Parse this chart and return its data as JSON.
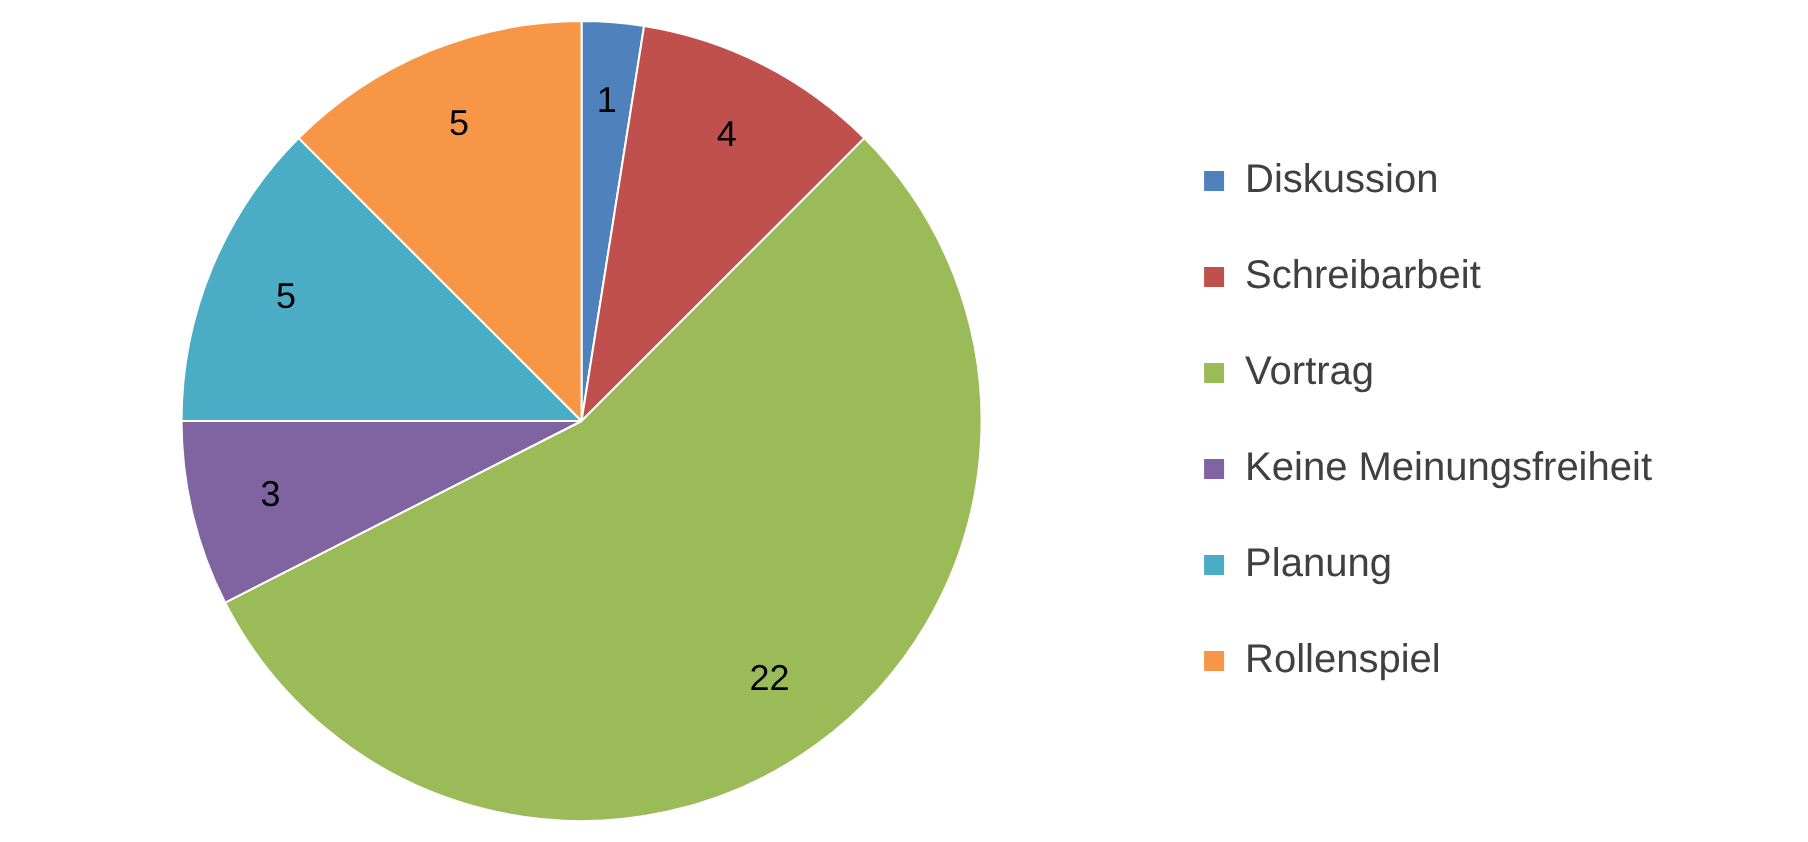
{
  "chart_data": {
    "type": "pie",
    "categories": [
      "Diskussion",
      "Schreibarbeit",
      "Vortrag",
      "Keine Meinungsfreiheit",
      "Planung",
      "Rollenspiel"
    ],
    "values": [
      1,
      4,
      22,
      3,
      5,
      5
    ],
    "colors": [
      "#4f81bd",
      "#c0504d",
      "#9bbb59",
      "#8064a2",
      "#4bacc6",
      "#f79646"
    ],
    "data_labels": true,
    "legend": "right"
  }
}
